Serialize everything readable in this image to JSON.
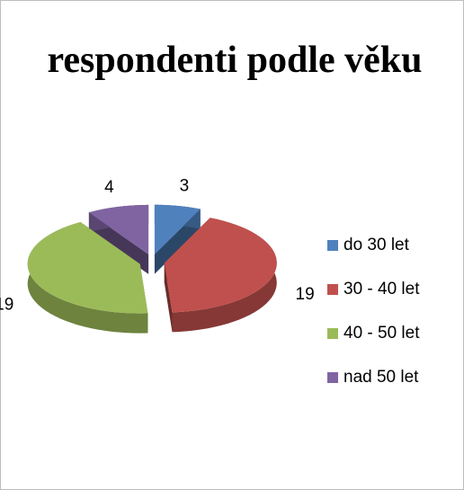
{
  "chart_data": {
    "type": "pie",
    "title": "respondenti podle věku",
    "categories": [
      "do 30 let",
      "30 - 40 let",
      "40 - 50 let",
      "nad 50 let"
    ],
    "values": [
      3,
      19,
      19,
      4
    ],
    "colors": [
      "#4f81bd",
      "#c0504d",
      "#9bbb59",
      "#8064a2"
    ],
    "legend": "right"
  }
}
